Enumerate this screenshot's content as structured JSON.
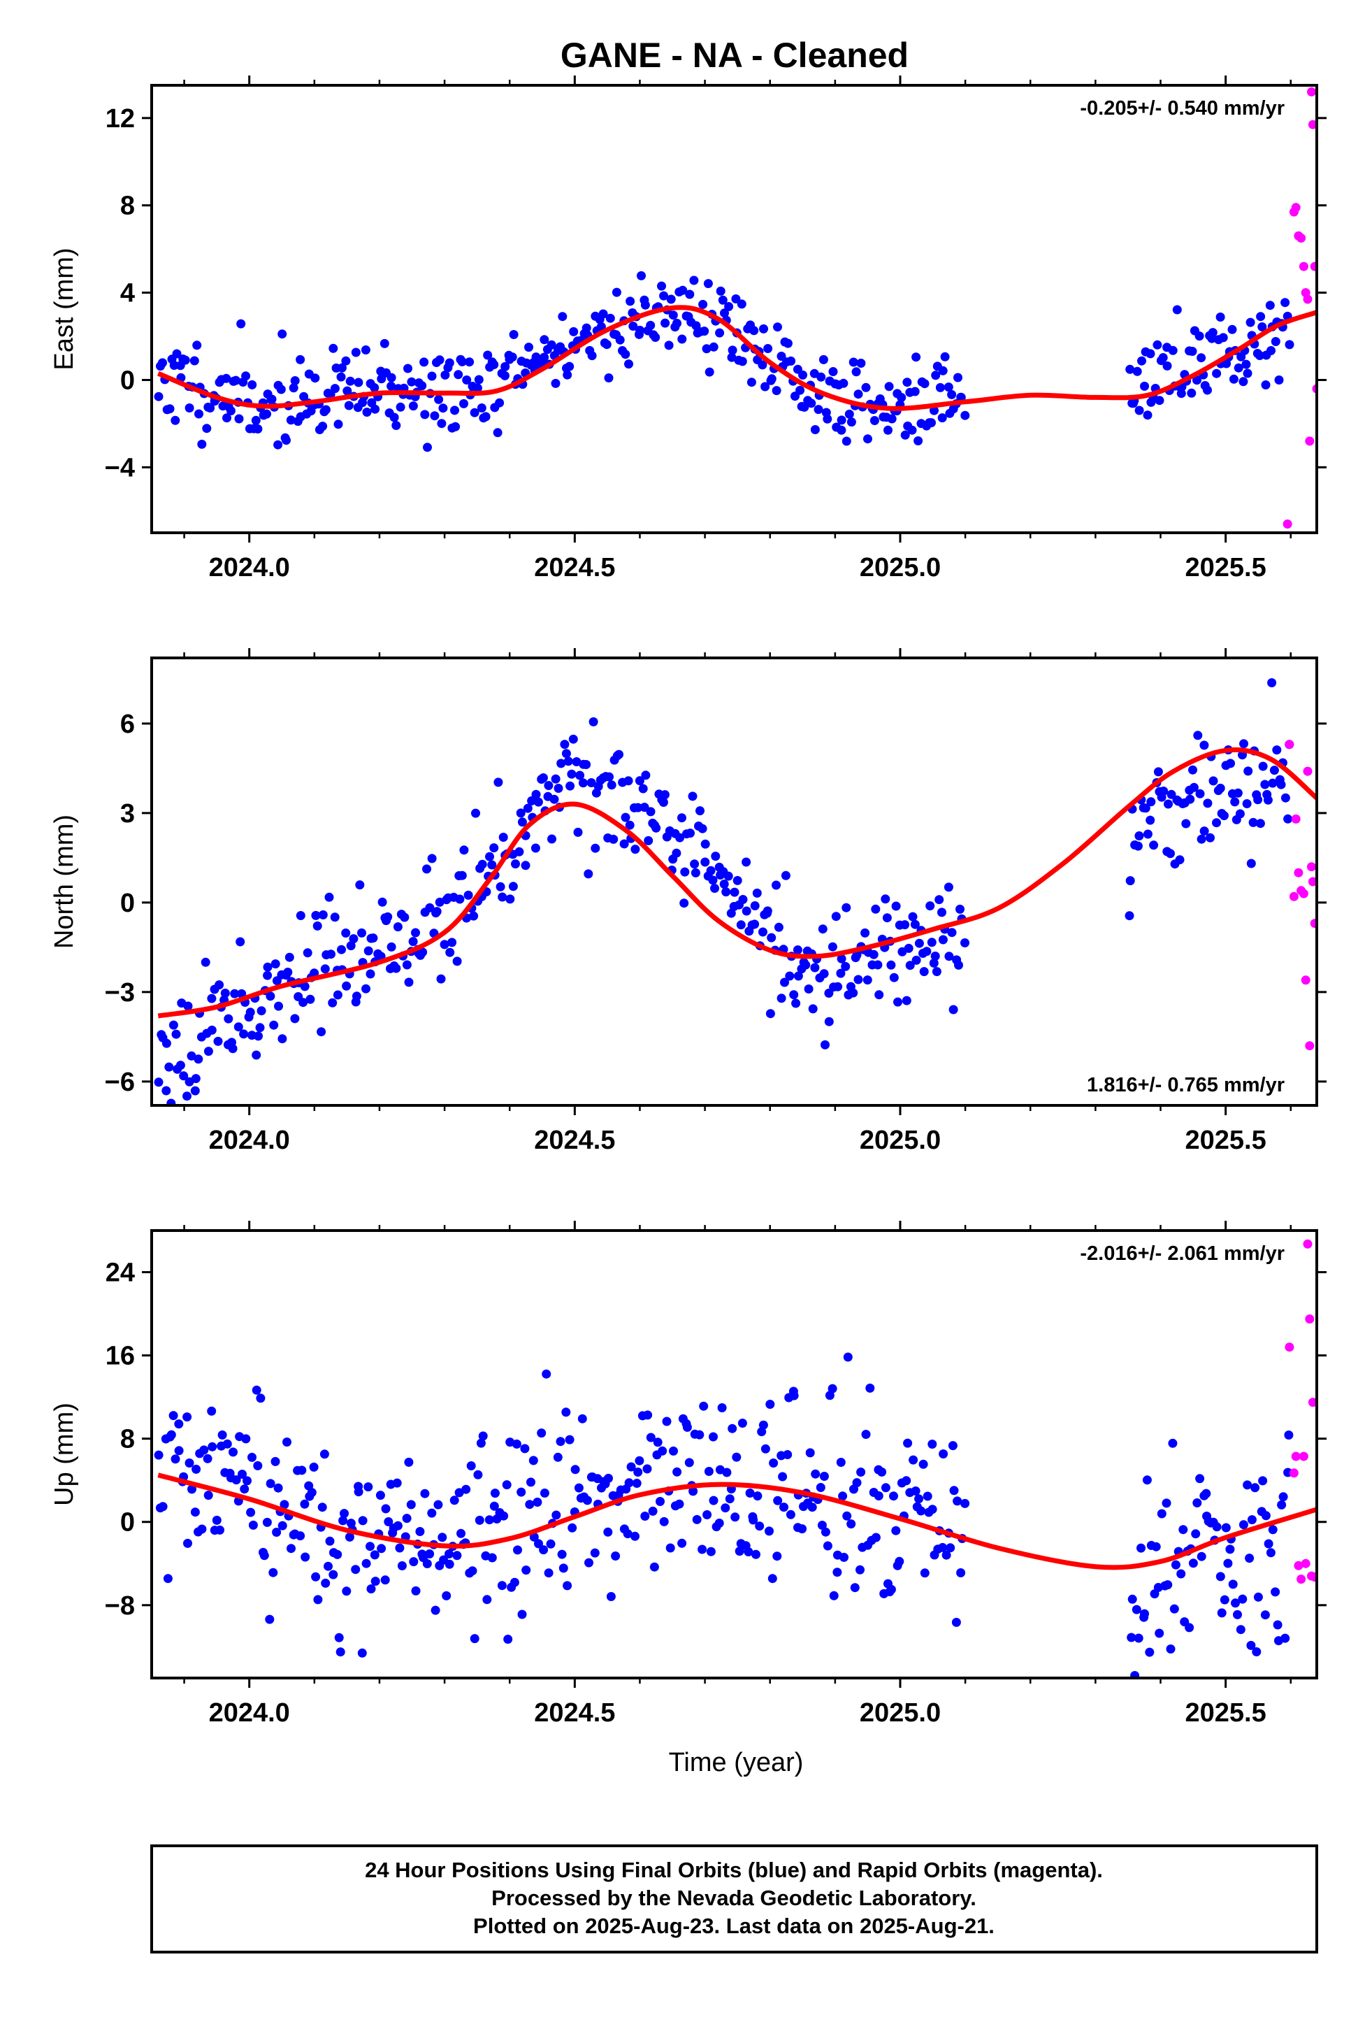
{
  "title": "GANE  - NA - Cleaned",
  "xlabel": "Time (year)",
  "colors": {
    "final": "#0000ff",
    "rapid": "#ff00ff",
    "model": "#ff0000",
    "frame": "#000000"
  },
  "footer": {
    "line1": "24 Hour Positions Using Final Orbits (blue) and Rapid Orbits (magenta).",
    "line2": "Processed by the Nevada Geodetic Laboratory.",
    "line3": "Plotted on 2025-Aug-23. Last data on 2025-Aug-21."
  },
  "chart_data": [
    {
      "type": "scatter",
      "component": "east",
      "ylabel": "East (mm)",
      "rate_label": "-0.205+/- 0.540 mm/yr",
      "rate_position": "top-right",
      "xlim": [
        2023.85,
        2025.64
      ],
      "ylim": [
        -7,
        13.5
      ],
      "xticks": [
        2024.0,
        2024.5,
        2025.0,
        2025.5
      ],
      "xtick_labels": [
        "2024.0",
        "2024.5",
        "2025.0",
        "2025.5"
      ],
      "yticks": [
        -4,
        0,
        4,
        8,
        12
      ],
      "ytick_labels": [
        "−4",
        "0",
        "4",
        "8",
        "12"
      ],
      "series": [
        {
          "role": "final",
          "segments": [
            [
              2023.86,
              2025.1
            ],
            [
              2025.35,
              2025.6
            ]
          ],
          "knots": [
            [
              2023.86,
              0.2
            ],
            [
              2024.0,
              -1.1
            ],
            [
              2024.2,
              -0.5
            ],
            [
              2024.35,
              -0.6
            ],
            [
              2024.5,
              1.7
            ],
            [
              2024.65,
              3.3
            ],
            [
              2024.75,
              2.2
            ],
            [
              2024.85,
              -0.5
            ],
            [
              2025.0,
              -1.2
            ],
            [
              2025.1,
              -1.0
            ],
            [
              2025.35,
              -0.5
            ],
            [
              2025.45,
              0.7
            ],
            [
              2025.6,
              2.5
            ]
          ],
          "scatter": 1.0,
          "count": 470,
          "seed": 11
        },
        {
          "role": "rapid",
          "points": [
            [
              2025.595,
              -6.6
            ],
            [
              2025.605,
              7.7
            ],
            [
              2025.608,
              7.9
            ],
            [
              2025.612,
              6.6
            ],
            [
              2025.616,
              6.5
            ],
            [
              2025.62,
              5.2
            ],
            [
              2025.623,
              4.0
            ],
            [
              2025.626,
              3.7
            ],
            [
              2025.629,
              -2.8
            ],
            [
              2025.632,
              13.2
            ],
            [
              2025.634,
              11.7
            ],
            [
              2025.637,
              5.2
            ],
            [
              2025.64,
              -0.4
            ]
          ]
        },
        {
          "role": "model",
          "knots": [
            [
              2023.86,
              0.3
            ],
            [
              2023.95,
              -0.8
            ],
            [
              2024.02,
              -1.2
            ],
            [
              2024.1,
              -1.0
            ],
            [
              2024.2,
              -0.6
            ],
            [
              2024.3,
              -0.6
            ],
            [
              2024.38,
              -0.5
            ],
            [
              2024.45,
              0.5
            ],
            [
              2024.55,
              2.3
            ],
            [
              2024.65,
              3.3
            ],
            [
              2024.72,
              2.8
            ],
            [
              2024.8,
              0.8
            ],
            [
              2024.88,
              -0.6
            ],
            [
              2024.98,
              -1.3
            ],
            [
              2025.1,
              -1.0
            ],
            [
              2025.2,
              -0.7
            ],
            [
              2025.3,
              -0.8
            ],
            [
              2025.38,
              -0.7
            ],
            [
              2025.45,
              0.2
            ],
            [
              2025.52,
              1.4
            ],
            [
              2025.58,
              2.5
            ],
            [
              2025.64,
              3.1
            ]
          ]
        }
      ]
    },
    {
      "type": "scatter",
      "component": "north",
      "ylabel": "North (mm)",
      "rate_label": "1.816+/- 0.765 mm/yr",
      "rate_position": "bottom-right",
      "xlim": [
        2023.85,
        2025.64
      ],
      "ylim": [
        -6.8,
        8.2
      ],
      "xticks": [
        2024.0,
        2024.5,
        2025.0,
        2025.5
      ],
      "xtick_labels": [
        "2024.0",
        "2024.5",
        "2025.0",
        "2025.5"
      ],
      "yticks": [
        -6,
        -3,
        0,
        3,
        6
      ],
      "ytick_labels": [
        "−6",
        "−3",
        "0",
        "3",
        "6"
      ],
      "series": [
        {
          "role": "final",
          "segments": [
            [
              2023.86,
              2025.1
            ],
            [
              2025.35,
              2025.6
            ]
          ],
          "knots": [
            [
              2023.86,
              -4.8
            ],
            [
              2023.95,
              -4.0
            ],
            [
              2024.05,
              -2.6
            ],
            [
              2024.2,
              -1.6
            ],
            [
              2024.3,
              -0.5
            ],
            [
              2024.4,
              2.0
            ],
            [
              2024.5,
              4.8
            ],
            [
              2024.57,
              3.5
            ],
            [
              2024.65,
              1.8
            ],
            [
              2024.75,
              0.2
            ],
            [
              2024.85,
              -2.5
            ],
            [
              2024.95,
              -1.5
            ],
            [
              2025.1,
              -0.7
            ],
            [
              2025.35,
              1.8
            ],
            [
              2025.45,
              3.5
            ],
            [
              2025.55,
              4.0
            ],
            [
              2025.6,
              4.3
            ]
          ],
          "scatter": 0.95,
          "count": 470,
          "seed": 23
        },
        {
          "role": "rapid",
          "points": [
            [
              2025.598,
              5.3
            ],
            [
              2025.605,
              0.2
            ],
            [
              2025.608,
              2.8
            ],
            [
              2025.612,
              1.0
            ],
            [
              2025.616,
              0.4
            ],
            [
              2025.62,
              0.3
            ],
            [
              2025.623,
              -2.6
            ],
            [
              2025.626,
              4.4
            ],
            [
              2025.629,
              -4.8
            ],
            [
              2025.632,
              1.2
            ],
            [
              2025.634,
              0.7
            ],
            [
              2025.637,
              -0.7
            ]
          ]
        },
        {
          "role": "model",
          "knots": [
            [
              2023.86,
              -3.8
            ],
            [
              2023.95,
              -3.5
            ],
            [
              2024.05,
              -2.8
            ],
            [
              2024.2,
              -2.0
            ],
            [
              2024.3,
              -1.0
            ],
            [
              2024.37,
              0.8
            ],
            [
              2024.43,
              2.6
            ],
            [
              2024.5,
              3.3
            ],
            [
              2024.58,
              2.4
            ],
            [
              2024.65,
              0.9
            ],
            [
              2024.72,
              -0.6
            ],
            [
              2024.8,
              -1.6
            ],
            [
              2024.87,
              -1.8
            ],
            [
              2024.95,
              -1.5
            ],
            [
              2025.05,
              -0.9
            ],
            [
              2025.15,
              -0.2
            ],
            [
              2025.25,
              1.3
            ],
            [
              2025.35,
              3.2
            ],
            [
              2025.42,
              4.4
            ],
            [
              2025.5,
              5.1
            ],
            [
              2025.57,
              4.8
            ],
            [
              2025.64,
              3.5
            ]
          ]
        }
      ]
    },
    {
      "type": "scatter",
      "component": "up",
      "ylabel": "Up (mm)",
      "rate_label": "-2.016+/- 2.061 mm/yr",
      "rate_position": "top-right",
      "xlim": [
        2023.85,
        2025.64
      ],
      "ylim": [
        -15,
        28
      ],
      "xticks": [
        2024.0,
        2024.5,
        2025.0,
        2025.5
      ],
      "xtick_labels": [
        "2024.0",
        "2024.5",
        "2025.0",
        "2025.5"
      ],
      "yticks": [
        -8,
        0,
        8,
        16,
        24
      ],
      "ytick_labels": [
        "−8",
        "0",
        "8",
        "16",
        "24"
      ],
      "series": [
        {
          "role": "final",
          "segments": [
            [
              2023.86,
              2025.1
            ],
            [
              2025.35,
              2025.6
            ]
          ],
          "knots": [
            [
              2023.86,
              4.0
            ],
            [
              2024.0,
              2.0
            ],
            [
              2024.15,
              -1.5
            ],
            [
              2024.3,
              -2.5
            ],
            [
              2024.45,
              0.5
            ],
            [
              2024.6,
              3.0
            ],
            [
              2024.75,
              3.5
            ],
            [
              2024.9,
              2.5
            ],
            [
              2025.05,
              0.0
            ],
            [
              2025.1,
              -0.5
            ],
            [
              2025.35,
              -7.0
            ],
            [
              2025.45,
              -4.0
            ],
            [
              2025.6,
              -2.0
            ]
          ],
          "scatter": 4.5,
          "count": 470,
          "seed": 37
        },
        {
          "role": "rapid",
          "points": [
            [
              2025.598,
              16.8
            ],
            [
              2025.605,
              4.7
            ],
            [
              2025.608,
              6.3
            ],
            [
              2025.612,
              -4.2
            ],
            [
              2025.616,
              -5.5
            ],
            [
              2025.62,
              6.3
            ],
            [
              2025.623,
              -4.0
            ],
            [
              2025.626,
              26.7
            ],
            [
              2025.629,
              19.5
            ],
            [
              2025.632,
              -5.2
            ],
            [
              2025.634,
              11.5
            ],
            [
              2025.637,
              -5.3
            ]
          ]
        },
        {
          "role": "model",
          "knots": [
            [
              2023.86,
              4.5
            ],
            [
              2024.0,
              2.2
            ],
            [
              2024.15,
              -0.8
            ],
            [
              2024.3,
              -2.3
            ],
            [
              2024.4,
              -1.6
            ],
            [
              2024.5,
              0.5
            ],
            [
              2024.6,
              2.6
            ],
            [
              2024.72,
              3.6
            ],
            [
              2024.85,
              2.8
            ],
            [
              2025.0,
              0.3
            ],
            [
              2025.15,
              -2.5
            ],
            [
              2025.3,
              -4.3
            ],
            [
              2025.4,
              -3.8
            ],
            [
              2025.5,
              -1.5
            ],
            [
              2025.64,
              1.2
            ]
          ]
        }
      ]
    }
  ]
}
